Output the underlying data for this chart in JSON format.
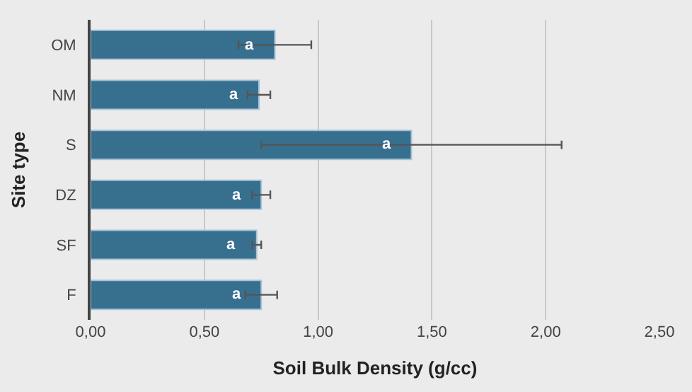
{
  "chart_data": {
    "type": "bar",
    "orientation": "horizontal",
    "xlabel": "Soil Bulk Density (g/cc)",
    "ylabel": "Site type",
    "categories": [
      "OM",
      "NM",
      "S",
      "DZ",
      "SF",
      "F"
    ],
    "values": [
      0.81,
      0.74,
      1.41,
      0.75,
      0.73,
      0.75
    ],
    "errors": [
      0.16,
      0.05,
      0.66,
      0.04,
      0.02,
      0.07
    ],
    "color": "#376f8f",
    "xlim": [
      0,
      2.5
    ],
    "xticks": [
      {
        "value": 0,
        "label": "0,00"
      },
      {
        "value": 0.5,
        "label": "0,50"
      },
      {
        "value": 1,
        "label": "1,00"
      },
      {
        "value": 1.5,
        "label": "1,50"
      },
      {
        "value": 2,
        "label": "2,00"
      },
      {
        "value": 2.5,
        "label": "2,50"
      }
    ],
    "grid": "x",
    "legend": false,
    "annotations": [
      {
        "text": "a",
        "x": 0.81,
        "y": "OM"
      },
      {
        "text": "a",
        "x": 0.74,
        "y": "NM"
      },
      {
        "text": "a",
        "x": 1.41,
        "y": "S"
      },
      {
        "text": "a",
        "x": 0.75,
        "y": "DZ"
      },
      {
        "text": "a",
        "x": 0.73,
        "y": "SF"
      },
      {
        "text": "a",
        "x": 0.75,
        "y": "F"
      }
    ]
  }
}
